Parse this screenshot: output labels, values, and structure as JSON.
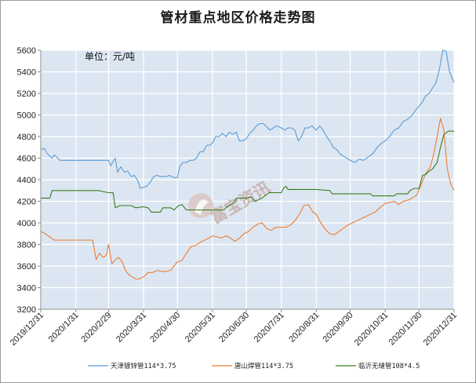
{
  "title": "管材重点地区价格走势图",
  "unit_note": "单位：元/吨",
  "watermark": "富宝资讯",
  "colors": {
    "plot_bg": "#dce6f2",
    "grid": "#ffffff",
    "axis": "#8c8c8c",
    "series": [
      "#5b9bd5",
      "#ed7d31",
      "#3a7d1c"
    ]
  },
  "chart_data": {
    "type": "line",
    "title": "管材重点地区价格走势图",
    "ylim": [
      3200,
      5600
    ],
    "y_ticks": [
      3200,
      3400,
      3600,
      3800,
      4000,
      4200,
      4400,
      4600,
      4800,
      5000,
      5200,
      5400,
      5600
    ],
    "x_range": [
      "2019-12-31",
      "2020-12-31"
    ],
    "x_ticks": [
      "2019/12/31",
      "2020/1/31",
      "2020/2/29",
      "2020/3/31",
      "2020/4/30",
      "2020/5/31",
      "2020/6/30",
      "2020/7/31",
      "2020/8/31",
      "2020/9/30",
      "2020/10/31",
      "2020/11/30",
      "2020/12/31"
    ],
    "grid": true,
    "legend_position": "bottom",
    "series": [
      {
        "name": "天津镀锌管114*3.75",
        "points": [
          [
            "2019-12-31",
            4680
          ],
          [
            "2020-01-03",
            4690
          ],
          [
            "2020-01-06",
            4640
          ],
          [
            "2020-01-08",
            4620
          ],
          [
            "2020-01-10",
            4600
          ],
          [
            "2020-01-12",
            4630
          ],
          [
            "2020-01-14",
            4610
          ],
          [
            "2020-01-17",
            4580
          ],
          [
            "2020-01-31",
            4580
          ],
          [
            "2020-02-15",
            4580
          ],
          [
            "2020-02-29",
            4580
          ],
          [
            "2020-03-02",
            4530
          ],
          [
            "2020-03-04",
            4570
          ],
          [
            "2020-03-06",
            4600
          ],
          [
            "2020-03-08",
            4470
          ],
          [
            "2020-03-11",
            4520
          ],
          [
            "2020-03-14",
            4470
          ],
          [
            "2020-03-17",
            4480
          ],
          [
            "2020-03-20",
            4430
          ],
          [
            "2020-03-23",
            4440
          ],
          [
            "2020-03-26",
            4390
          ],
          [
            "2020-03-28",
            4320
          ],
          [
            "2020-03-31",
            4330
          ],
          [
            "2020-04-03",
            4340
          ],
          [
            "2020-04-06",
            4380
          ],
          [
            "2020-04-09",
            4430
          ],
          [
            "2020-04-12",
            4440
          ],
          [
            "2020-04-15",
            4430
          ],
          [
            "2020-04-20",
            4430
          ],
          [
            "2020-04-23",
            4440
          ],
          [
            "2020-04-27",
            4420
          ],
          [
            "2020-04-30",
            4420
          ],
          [
            "2020-05-02",
            4520
          ],
          [
            "2020-05-05",
            4560
          ],
          [
            "2020-05-08",
            4560
          ],
          [
            "2020-05-11",
            4580
          ],
          [
            "2020-05-14",
            4580
          ],
          [
            "2020-05-17",
            4600
          ],
          [
            "2020-05-20",
            4660
          ],
          [
            "2020-05-23",
            4660
          ],
          [
            "2020-05-26",
            4720
          ],
          [
            "2020-05-29",
            4720
          ],
          [
            "2020-05-31",
            4740
          ],
          [
            "2020-06-03",
            4800
          ],
          [
            "2020-06-06",
            4800
          ],
          [
            "2020-06-09",
            4830
          ],
          [
            "2020-06-12",
            4800
          ],
          [
            "2020-06-15",
            4840
          ],
          [
            "2020-06-18",
            4820
          ],
          [
            "2020-06-21",
            4840
          ],
          [
            "2020-06-24",
            4760
          ],
          [
            "2020-06-27",
            4760
          ],
          [
            "2020-06-30",
            4780
          ],
          [
            "2020-07-03",
            4830
          ],
          [
            "2020-07-06",
            4860
          ],
          [
            "2020-07-09",
            4900
          ],
          [
            "2020-07-12",
            4920
          ],
          [
            "2020-07-15",
            4920
          ],
          [
            "2020-07-18",
            4890
          ],
          [
            "2020-07-21",
            4860
          ],
          [
            "2020-07-24",
            4880
          ],
          [
            "2020-07-27",
            4900
          ],
          [
            "2020-07-31",
            4880
          ],
          [
            "2020-08-03",
            4860
          ],
          [
            "2020-08-06",
            4880
          ],
          [
            "2020-08-09",
            4880
          ],
          [
            "2020-08-12",
            4860
          ],
          [
            "2020-08-15",
            4760
          ],
          [
            "2020-08-18",
            4800
          ],
          [
            "2020-08-21",
            4880
          ],
          [
            "2020-08-24",
            4880
          ],
          [
            "2020-08-27",
            4900
          ],
          [
            "2020-08-31",
            4860
          ],
          [
            "2020-09-03",
            4900
          ],
          [
            "2020-09-06",
            4860
          ],
          [
            "2020-09-09",
            4800
          ],
          [
            "2020-09-12",
            4760
          ],
          [
            "2020-09-15",
            4700
          ],
          [
            "2020-09-18",
            4680
          ],
          [
            "2020-09-21",
            4640
          ],
          [
            "2020-09-24",
            4620
          ],
          [
            "2020-09-27",
            4600
          ],
          [
            "2020-09-30",
            4580
          ],
          [
            "2020-10-04",
            4560
          ],
          [
            "2020-10-08",
            4590
          ],
          [
            "2020-10-12",
            4580
          ],
          [
            "2020-10-16",
            4610
          ],
          [
            "2020-10-20",
            4640
          ],
          [
            "2020-10-24",
            4700
          ],
          [
            "2020-10-28",
            4740
          ],
          [
            "2020-10-31",
            4760
          ],
          [
            "2020-11-04",
            4800
          ],
          [
            "2020-11-08",
            4860
          ],
          [
            "2020-11-12",
            4880
          ],
          [
            "2020-11-16",
            4940
          ],
          [
            "2020-11-20",
            4960
          ],
          [
            "2020-11-24",
            5000
          ],
          [
            "2020-11-28",
            5060
          ],
          [
            "2020-11-30",
            5080
          ],
          [
            "2020-12-03",
            5120
          ],
          [
            "2020-12-06",
            5180
          ],
          [
            "2020-12-09",
            5200
          ],
          [
            "2020-12-12",
            5250
          ],
          [
            "2020-12-15",
            5300
          ],
          [
            "2020-12-18",
            5420
          ],
          [
            "2020-12-21",
            5600
          ],
          [
            "2020-12-24",
            5590
          ],
          [
            "2020-12-27",
            5400
          ],
          [
            "2020-12-31",
            5300
          ]
        ]
      },
      {
        "name": "唐山焊管114*3.75",
        "points": [
          [
            "2019-12-31",
            3920
          ],
          [
            "2020-01-04",
            3900
          ],
          [
            "2020-01-08",
            3870
          ],
          [
            "2020-01-12",
            3840
          ],
          [
            "2020-01-16",
            3840
          ],
          [
            "2020-01-31",
            3840
          ],
          [
            "2020-02-15",
            3840
          ],
          [
            "2020-02-18",
            3660
          ],
          [
            "2020-02-21",
            3720
          ],
          [
            "2020-02-24",
            3680
          ],
          [
            "2020-02-27",
            3700
          ],
          [
            "2020-02-29",
            3800
          ],
          [
            "2020-03-03",
            3620
          ],
          [
            "2020-03-06",
            3660
          ],
          [
            "2020-03-09",
            3680
          ],
          [
            "2020-03-12",
            3640
          ],
          [
            "2020-03-15",
            3560
          ],
          [
            "2020-03-18",
            3520
          ],
          [
            "2020-03-21",
            3500
          ],
          [
            "2020-03-24",
            3480
          ],
          [
            "2020-03-27",
            3480
          ],
          [
            "2020-03-31",
            3500
          ],
          [
            "2020-04-04",
            3540
          ],
          [
            "2020-04-08",
            3540
          ],
          [
            "2020-04-12",
            3560
          ],
          [
            "2020-04-16",
            3550
          ],
          [
            "2020-04-20",
            3550
          ],
          [
            "2020-04-24",
            3560
          ],
          [
            "2020-04-27",
            3600
          ],
          [
            "2020-04-30",
            3640
          ],
          [
            "2020-05-04",
            3650
          ],
          [
            "2020-05-08",
            3720
          ],
          [
            "2020-05-12",
            3780
          ],
          [
            "2020-05-16",
            3790
          ],
          [
            "2020-05-20",
            3820
          ],
          [
            "2020-05-24",
            3840
          ],
          [
            "2020-05-28",
            3860
          ],
          [
            "2020-05-31",
            3880
          ],
          [
            "2020-06-04",
            3870
          ],
          [
            "2020-06-08",
            3860
          ],
          [
            "2020-06-12",
            3880
          ],
          [
            "2020-06-16",
            3860
          ],
          [
            "2020-06-20",
            3830
          ],
          [
            "2020-06-24",
            3860
          ],
          [
            "2020-06-28",
            3900
          ],
          [
            "2020-07-02",
            3920
          ],
          [
            "2020-07-06",
            3960
          ],
          [
            "2020-07-10",
            3990
          ],
          [
            "2020-07-14",
            4000
          ],
          [
            "2020-07-18",
            3950
          ],
          [
            "2020-07-22",
            3930
          ],
          [
            "2020-07-26",
            3960
          ],
          [
            "2020-07-31",
            3960
          ],
          [
            "2020-08-04",
            3960
          ],
          [
            "2020-08-08",
            3980
          ],
          [
            "2020-08-12",
            4020
          ],
          [
            "2020-08-16",
            4080
          ],
          [
            "2020-08-20",
            4160
          ],
          [
            "2020-08-24",
            4170
          ],
          [
            "2020-08-28",
            4100
          ],
          [
            "2020-08-31",
            4080
          ],
          [
            "2020-09-04",
            4000
          ],
          [
            "2020-09-08",
            3940
          ],
          [
            "2020-09-12",
            3900
          ],
          [
            "2020-09-16",
            3890
          ],
          [
            "2020-09-20",
            3920
          ],
          [
            "2020-09-24",
            3950
          ],
          [
            "2020-09-28",
            3980
          ],
          [
            "2020-10-02",
            4000
          ],
          [
            "2020-10-06",
            4020
          ],
          [
            "2020-10-10",
            4040
          ],
          [
            "2020-10-14",
            4060
          ],
          [
            "2020-10-18",
            4080
          ],
          [
            "2020-10-22",
            4100
          ],
          [
            "2020-10-26",
            4140
          ],
          [
            "2020-10-31",
            4180
          ],
          [
            "2020-11-04",
            4190
          ],
          [
            "2020-11-08",
            4200
          ],
          [
            "2020-11-12",
            4170
          ],
          [
            "2020-11-16",
            4200
          ],
          [
            "2020-11-20",
            4210
          ],
          [
            "2020-11-24",
            4230
          ],
          [
            "2020-11-28",
            4260
          ],
          [
            "2020-12-02",
            4360
          ],
          [
            "2020-12-06",
            4460
          ],
          [
            "2020-12-10",
            4520
          ],
          [
            "2020-12-13",
            4640
          ],
          [
            "2020-12-16",
            4800
          ],
          [
            "2020-12-19",
            4970
          ],
          [
            "2020-12-22",
            4860
          ],
          [
            "2020-12-25",
            4500
          ],
          [
            "2020-12-28",
            4360
          ],
          [
            "2020-12-31",
            4300
          ]
        ]
      },
      {
        "name": "临沂无缝管108*4.5",
        "points": [
          [
            "2019-12-31",
            4230
          ],
          [
            "2020-01-08",
            4230
          ],
          [
            "2020-01-10",
            4300
          ],
          [
            "2020-01-31",
            4300
          ],
          [
            "2020-02-20",
            4300
          ],
          [
            "2020-02-29",
            4280
          ],
          [
            "2020-03-04",
            4280
          ],
          [
            "2020-03-06",
            4140
          ],
          [
            "2020-03-10",
            4160
          ],
          [
            "2020-03-20",
            4160
          ],
          [
            "2020-03-24",
            4140
          ],
          [
            "2020-03-31",
            4150
          ],
          [
            "2020-04-04",
            4140
          ],
          [
            "2020-04-07",
            4100
          ],
          [
            "2020-04-15",
            4100
          ],
          [
            "2020-04-17",
            4140
          ],
          [
            "2020-04-24",
            4140
          ],
          [
            "2020-04-27",
            4120
          ],
          [
            "2020-05-01",
            4160
          ],
          [
            "2020-05-04",
            4170
          ],
          [
            "2020-05-08",
            4120
          ],
          [
            "2020-05-31",
            4120
          ],
          [
            "2020-06-10",
            4120
          ],
          [
            "2020-06-14",
            4160
          ],
          [
            "2020-06-18",
            4180
          ],
          [
            "2020-06-22",
            4230
          ],
          [
            "2020-06-30",
            4230
          ],
          [
            "2020-07-04",
            4240
          ],
          [
            "2020-07-08",
            4200
          ],
          [
            "2020-07-14",
            4230
          ],
          [
            "2020-07-20",
            4280
          ],
          [
            "2020-07-31",
            4280
          ],
          [
            "2020-08-02",
            4320
          ],
          [
            "2020-08-04",
            4340
          ],
          [
            "2020-08-06",
            4310
          ],
          [
            "2020-08-31",
            4310
          ],
          [
            "2020-09-12",
            4300
          ],
          [
            "2020-09-14",
            4270
          ],
          [
            "2020-09-30",
            4270
          ],
          [
            "2020-10-18",
            4270
          ],
          [
            "2020-10-20",
            4250
          ],
          [
            "2020-10-31",
            4250
          ],
          [
            "2020-11-08",
            4250
          ],
          [
            "2020-11-10",
            4270
          ],
          [
            "2020-11-20",
            4270
          ],
          [
            "2020-11-22",
            4300
          ],
          [
            "2020-11-26",
            4320
          ],
          [
            "2020-11-30",
            4320
          ],
          [
            "2020-12-03",
            4440
          ],
          [
            "2020-12-06",
            4450
          ],
          [
            "2020-12-09",
            4480
          ],
          [
            "2020-12-12",
            4500
          ],
          [
            "2020-12-16",
            4560
          ],
          [
            "2020-12-19",
            4700
          ],
          [
            "2020-12-22",
            4820
          ],
          [
            "2020-12-26",
            4850
          ],
          [
            "2020-12-31",
            4850
          ]
        ]
      }
    ]
  }
}
